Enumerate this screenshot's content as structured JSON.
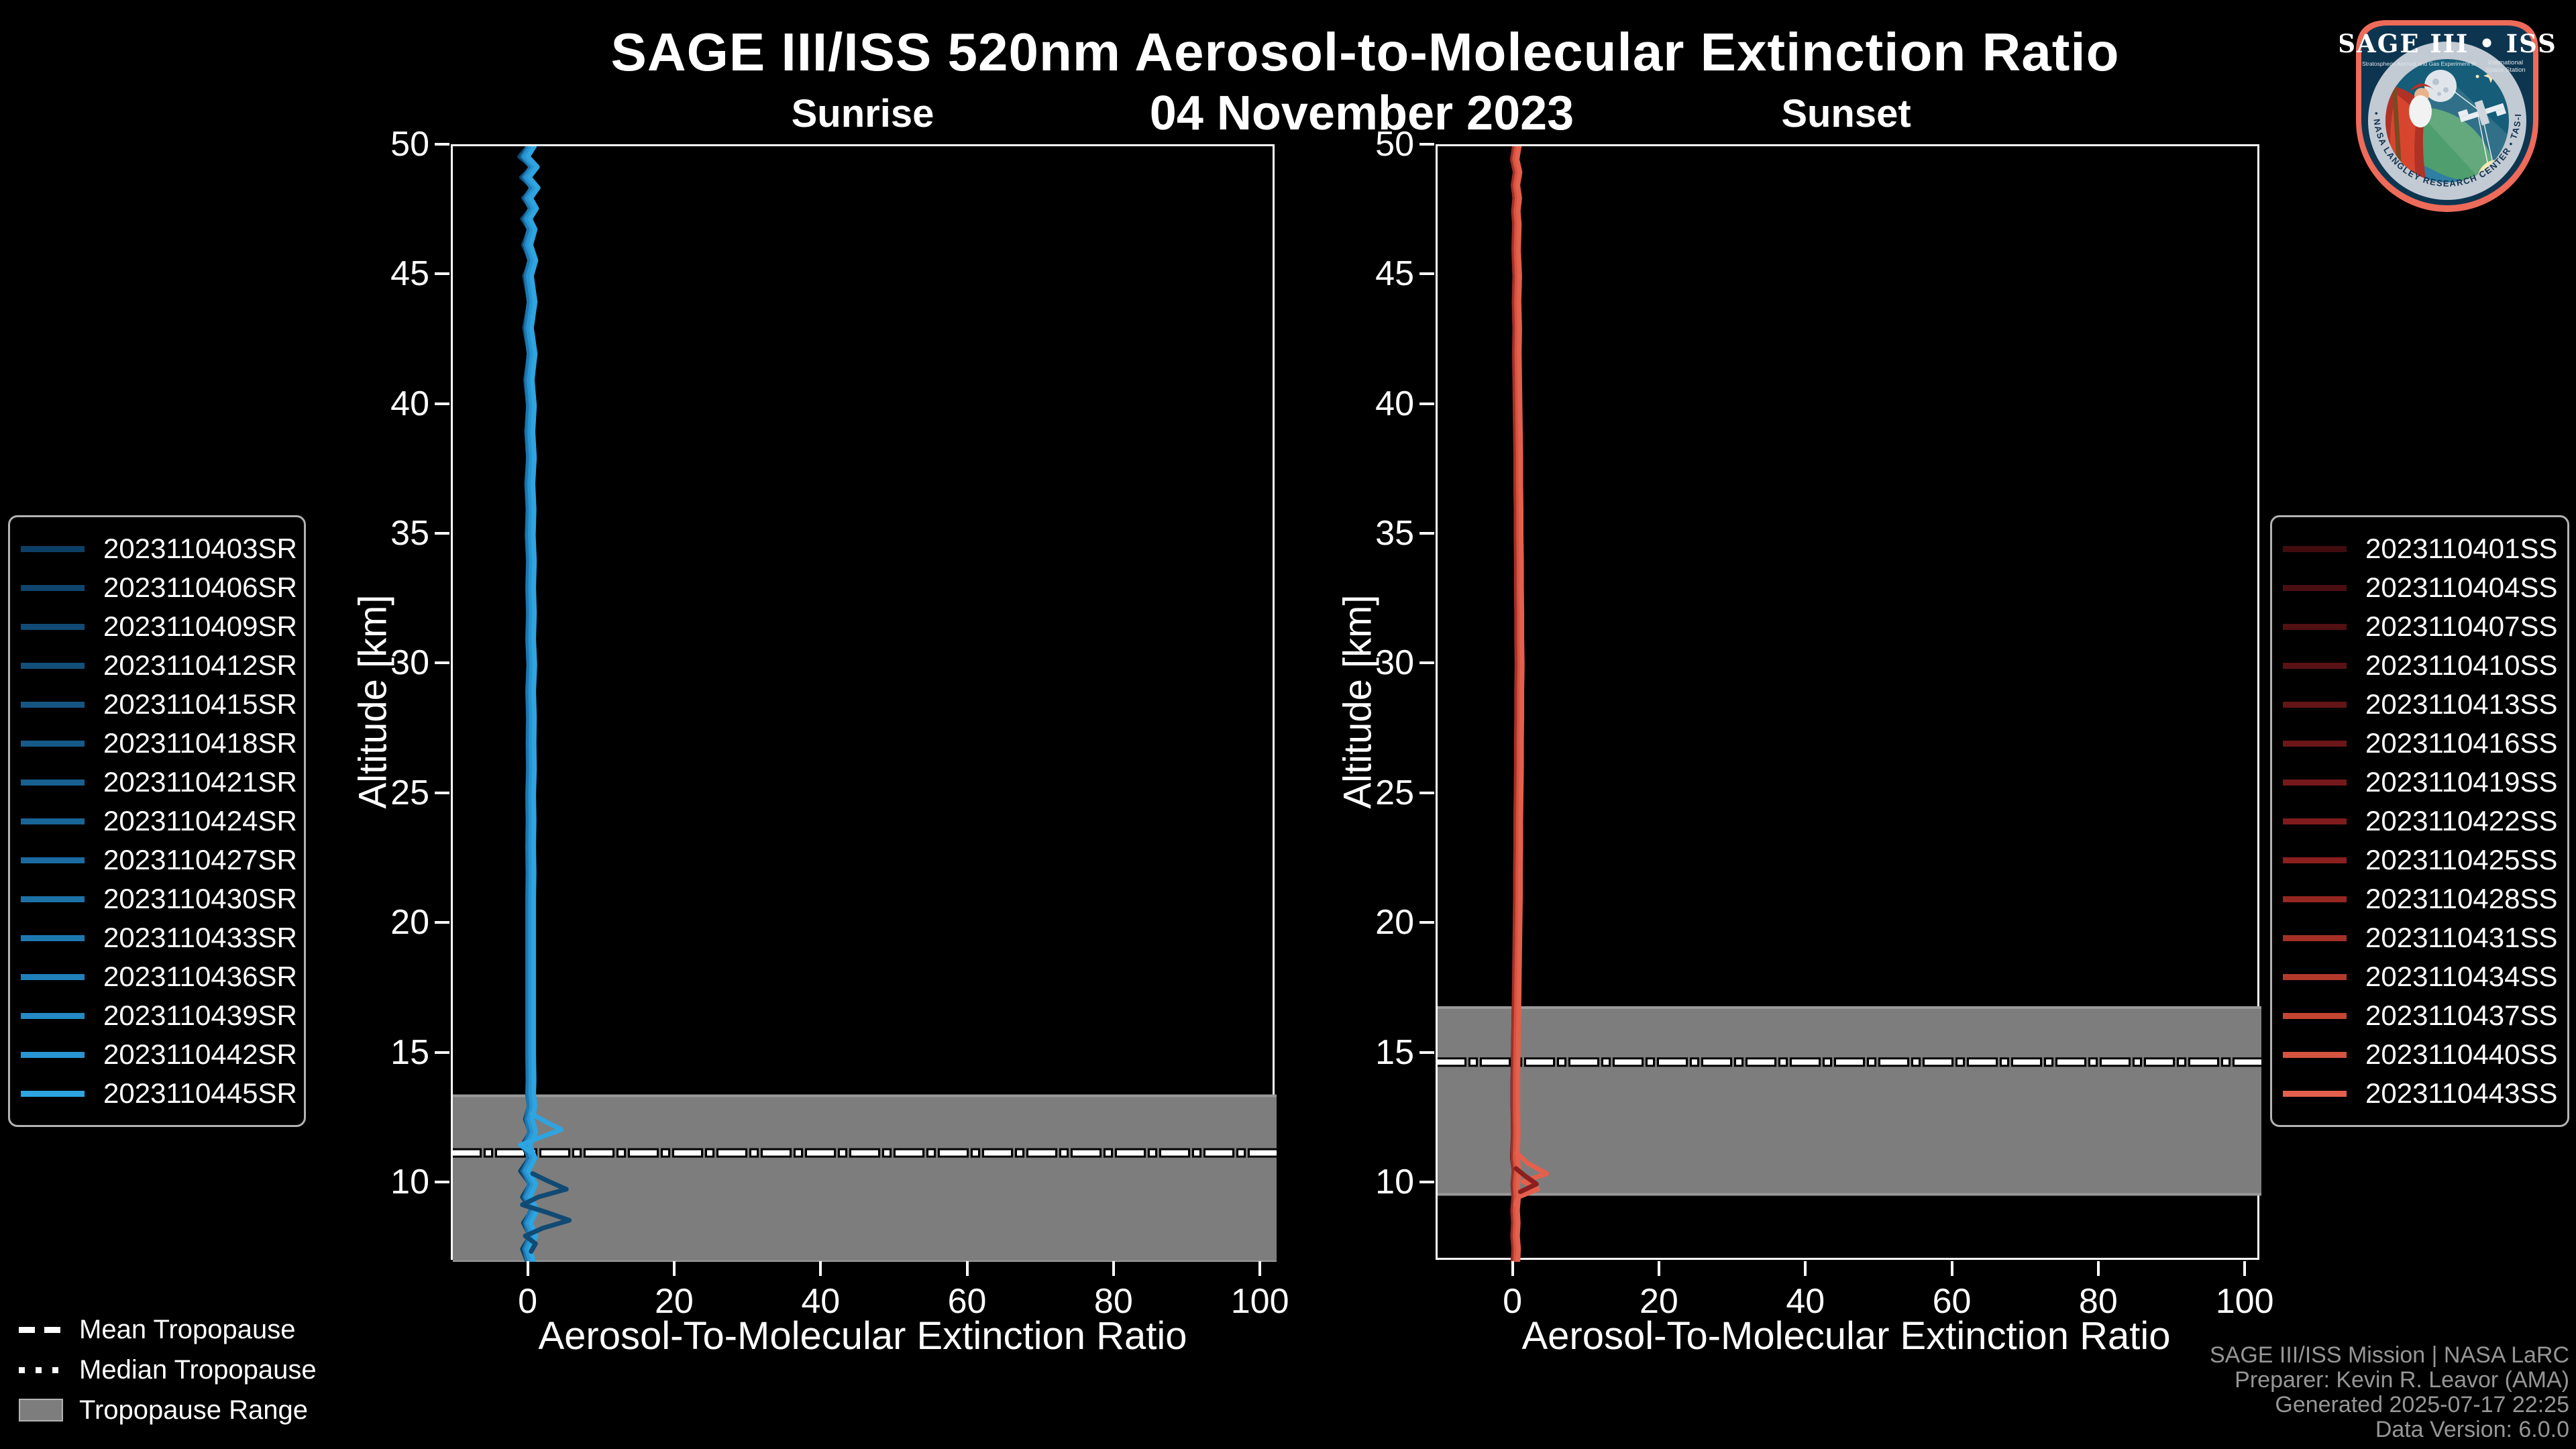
{
  "header": {
    "title": "SAGE III/ISS 520nm Aerosol-to-Molecular Extinction Ratio",
    "date": "04 November 2023"
  },
  "chart_data": {
    "type": "line",
    "title": "SAGE III/ISS 520nm Aerosol-to-Molecular Extinction Ratio",
    "subtitle": "04 November 2023",
    "panels": [
      {
        "id": "sunrise",
        "title": "Sunrise",
        "xlabel": "Aerosol-To-Molecular Extinction Ratio",
        "ylabel": "Altitude [km]",
        "xlim": [
          -10.5,
          102
        ],
        "ylim": [
          7,
          50
        ],
        "xticks": [
          0,
          20,
          40,
          60,
          80,
          100
        ],
        "yticks": [
          10,
          15,
          20,
          25,
          30,
          35,
          40,
          45,
          50
        ],
        "grid": false,
        "tropopause": {
          "range": [
            7.0,
            13.4
          ],
          "mean": 11.2,
          "median": 11.2
        },
        "series": [
          {
            "label": "2023110403SR",
            "color": "#0d4066"
          },
          {
            "label": "2023110406SR",
            "color": "#0f456d"
          },
          {
            "label": "2023110409SR",
            "color": "#114a74"
          },
          {
            "label": "2023110412SR",
            "color": "#12507b"
          },
          {
            "label": "2023110415SR",
            "color": "#145582"
          },
          {
            "label": "2023110418SR",
            "color": "#155a89"
          },
          {
            "label": "2023110421SR",
            "color": "#176090"
          },
          {
            "label": "2023110424SR",
            "color": "#186597"
          },
          {
            "label": "2023110427SR",
            "color": "#1a6b9f"
          },
          {
            "label": "2023110430SR",
            "color": "#1c71a7"
          },
          {
            "label": "2023110433SR",
            "color": "#1e78b0"
          },
          {
            "label": "2023110436SR",
            "color": "#2080ba"
          },
          {
            "label": "2023110439SR",
            "color": "#2489c5"
          },
          {
            "label": "2023110442SR",
            "color": "#2895d2"
          },
          {
            "label": "2023110445SR",
            "color": "#2ea4e0"
          }
        ],
        "x_offsets": [
          -0.45,
          -0.3,
          -0.15,
          -0.38,
          0.08,
          -0.22,
          0.18,
          -0.05,
          0.28,
          0.12,
          -0.32,
          0.22,
          0.38,
          0.02,
          0.45
        ],
        "amp_factors": [
          1.35,
          0.75,
          1.2,
          0.95,
          0.65,
          1.3,
          0.85,
          1.1,
          0.7,
          1.25,
          0.8,
          1.15,
          0.9,
          1.05,
          1.0
        ],
        "base_profile": [
          [
            50,
            0.2
          ],
          [
            49.6,
            -0.7
          ],
          [
            49.2,
            0.6
          ],
          [
            48.8,
            -0.5
          ],
          [
            48.4,
            0.7
          ],
          [
            48,
            -0.3
          ],
          [
            47.6,
            0.5
          ],
          [
            47.2,
            -0.4
          ],
          [
            46.8,
            0.3
          ],
          [
            46.2,
            -0.3
          ],
          [
            45.6,
            0.4
          ],
          [
            45,
            -0.2
          ],
          [
            44,
            0.3
          ],
          [
            43,
            -0.2
          ],
          [
            42,
            0.3
          ],
          [
            41,
            -0.1
          ],
          [
            40,
            0.2
          ],
          [
            39,
            0
          ],
          [
            38,
            0.2
          ],
          [
            37,
            0
          ],
          [
            36,
            0.15
          ],
          [
            35,
            0.05
          ],
          [
            34,
            0.2
          ],
          [
            33,
            0.1
          ],
          [
            32,
            0.2
          ],
          [
            31,
            0.1
          ],
          [
            30,
            0.25
          ],
          [
            29,
            0.1
          ],
          [
            28,
            0.2
          ],
          [
            27,
            0.15
          ],
          [
            26,
            0.2
          ],
          [
            25,
            0.1
          ],
          [
            24,
            0.15
          ],
          [
            23,
            0.1
          ],
          [
            22,
            0.15
          ],
          [
            21,
            0.1
          ],
          [
            20,
            0.1
          ],
          [
            19,
            0.1
          ],
          [
            18,
            0.1
          ],
          [
            17,
            0.1
          ],
          [
            16,
            0.1
          ],
          [
            15,
            0.1
          ],
          [
            14,
            0.15
          ],
          [
            13.5,
            0.1
          ],
          [
            13,
            0.3
          ],
          [
            12.5,
            -0.1
          ],
          [
            12,
            0.4
          ],
          [
            11.5,
            -0.4
          ],
          [
            11,
            0.3
          ],
          [
            10.5,
            -0.6
          ],
          [
            10,
            0.4
          ],
          [
            9.5,
            -0.4
          ],
          [
            9,
            0.6
          ],
          [
            8.5,
            -0.3
          ],
          [
            8,
            0.4
          ],
          [
            7.5,
            -0.4
          ],
          [
            7,
            0.1
          ]
        ],
        "anomalies": [
          {
            "name": "bright-spike-12km",
            "color": "#2ea4e0",
            "points": [
              [
                12.7,
                0.3
              ],
              [
                12.4,
                2.2
              ],
              [
                12.1,
                4.3
              ],
              [
                11.8,
                1.5
              ],
              [
                11.5,
                -1.3
              ],
              [
                11.2,
                0.4
              ]
            ]
          },
          {
            "name": "dark-zigzag-8-10km",
            "color": "#114a74",
            "points": [
              [
                10.4,
                0.4
              ],
              [
                10.1,
                2.6
              ],
              [
                9.8,
                5.0
              ],
              [
                9.5,
                1.2
              ],
              [
                9.2,
                -1.0
              ],
              [
                8.9,
                2.4
              ],
              [
                8.6,
                5.4
              ],
              [
                8.3,
                1.8
              ],
              [
                8.0,
                -0.6
              ],
              [
                7.7,
                0.8
              ],
              [
                7.4,
                0.2
              ]
            ]
          }
        ]
      },
      {
        "id": "sunset",
        "title": "Sunset",
        "xlabel": "Aerosol-To-Molecular Extinction Ratio",
        "ylabel": "Altitude [km]",
        "xlim": [
          -10.5,
          102
        ],
        "ylim": [
          7,
          50
        ],
        "xticks": [
          0,
          20,
          40,
          60,
          80,
          100
        ],
        "yticks": [
          10,
          15,
          20,
          25,
          30,
          35,
          40,
          45,
          50
        ],
        "grid": false,
        "tropopause": {
          "range": [
            9.6,
            16.8
          ],
          "mean": 14.7,
          "median": 14.7
        },
        "series": [
          {
            "label": "2023110401SS",
            "color": "#420c0f"
          },
          {
            "label": "2023110404SS",
            "color": "#4a0e11"
          },
          {
            "label": "2023110407SS",
            "color": "#521013"
          },
          {
            "label": "2023110410SS",
            "color": "#5a1215"
          },
          {
            "label": "2023110413SS",
            "color": "#631417"
          },
          {
            "label": "2023110416SS",
            "color": "#6c1619"
          },
          {
            "label": "2023110419SS",
            "color": "#75181a"
          },
          {
            "label": "2023110422SS",
            "color": "#7f1b1c"
          },
          {
            "label": "2023110425SS",
            "color": "#8a1f1e"
          },
          {
            "label": "2023110428SS",
            "color": "#962621"
          },
          {
            "label": "2023110431SS",
            "color": "#a43026"
          },
          {
            "label": "2023110434SS",
            "color": "#b33a2b"
          },
          {
            "label": "2023110437SS",
            "color": "#c44631"
          },
          {
            "label": "2023110440SS",
            "color": "#d55340"
          },
          {
            "label": "2023110443SS",
            "color": "#e4604c"
          }
        ],
        "x_offsets": [
          -0.35,
          -0.22,
          -0.1,
          -0.3,
          0.06,
          -0.18,
          0.14,
          -0.04,
          0.22,
          0.1,
          -0.26,
          0.18,
          0.3,
          0.02,
          0.36
        ],
        "amp_factors": [
          1.25,
          0.8,
          1.15,
          0.95,
          0.7,
          1.2,
          0.9,
          1.05,
          0.75,
          1.2,
          0.85,
          1.1,
          0.9,
          1.0,
          1.0
        ],
        "base_profile": [
          [
            50,
            0.3
          ],
          [
            49.5,
            0
          ],
          [
            49,
            0.4
          ],
          [
            48.5,
            0.1
          ],
          [
            48,
            0.35
          ],
          [
            47.5,
            0.15
          ],
          [
            47,
            0.3
          ],
          [
            46,
            0.2
          ],
          [
            45,
            0.35
          ],
          [
            44,
            0.25
          ],
          [
            43,
            0.35
          ],
          [
            42,
            0.3
          ],
          [
            41,
            0.35
          ],
          [
            40,
            0.4
          ],
          [
            39,
            0.45
          ],
          [
            38,
            0.5
          ],
          [
            37,
            0.5
          ],
          [
            36,
            0.55
          ],
          [
            35,
            0.55
          ],
          [
            34,
            0.6
          ],
          [
            33,
            0.6
          ],
          [
            32,
            0.65
          ],
          [
            31,
            0.65
          ],
          [
            30,
            0.7
          ],
          [
            29,
            0.65
          ],
          [
            28,
            0.65
          ],
          [
            27,
            0.6
          ],
          [
            26,
            0.6
          ],
          [
            25,
            0.55
          ],
          [
            24,
            0.5
          ],
          [
            23,
            0.5
          ],
          [
            22,
            0.45
          ],
          [
            21,
            0.45
          ],
          [
            20,
            0.4
          ],
          [
            19,
            0.35
          ],
          [
            18,
            0.3
          ],
          [
            17,
            0.25
          ],
          [
            16,
            0.2
          ],
          [
            15,
            0.15
          ],
          [
            14,
            0.1
          ],
          [
            13,
            0.1
          ],
          [
            12,
            0.15
          ],
          [
            11,
            0.05
          ],
          [
            10.5,
            0.25
          ],
          [
            10,
            0.1
          ],
          [
            9.5,
            0.2
          ],
          [
            9,
            0.05
          ],
          [
            8.5,
            0.15
          ],
          [
            8,
            0.05
          ],
          [
            7.5,
            0.2
          ],
          [
            7,
            0.1
          ]
        ],
        "anomalies": [
          {
            "name": "salmon-branch-10km",
            "color": "#e4604c",
            "points": [
              [
                11.2,
                0.3
              ],
              [
                10.8,
                1.8
              ],
              [
                10.4,
                4.4
              ],
              [
                10.1,
                1.2
              ],
              [
                9.8,
                3.2
              ],
              [
                9.5,
                0.6
              ],
              [
                9.2,
                0.2
              ]
            ]
          },
          {
            "name": "dark-branch-10km",
            "color": "#8a1f1e",
            "points": [
              [
                10.6,
                0.2
              ],
              [
                10.3,
                1.5
              ],
              [
                10.0,
                3.0
              ],
              [
                9.7,
                0.8
              ]
            ]
          }
        ]
      }
    ],
    "style": {
      "background": "#000000",
      "spine_color": "#ffffff",
      "tropopause_band_fill": "#7d7d7d",
      "tropopause_band_edge": "#9a9a9a",
      "tropopause_line_color": "#ffffff"
    }
  },
  "tropopause_legend": {
    "mean_label": "Mean Tropopause",
    "median_label": "Median Tropopause",
    "range_label": "Tropopause Range"
  },
  "attribution": [
    "SAGE III/ISS Mission | NASA LaRC",
    "Preparer: Kevin R. Leavor (AMA)",
    "Generated 2025-07-17 22:25",
    "Data Version: 6.0.0"
  ],
  "logo": {
    "title": "SAGE III • ISS",
    "subtitle_left": "Stratospheric Aerosol and Gas Experiment III",
    "subtitle_right_1": "International",
    "subtitle_right_2": "Space Station",
    "ring_text": "BALL • NASA LANGLEY RESEARCH CENTER • TAS-I • ESA"
  }
}
